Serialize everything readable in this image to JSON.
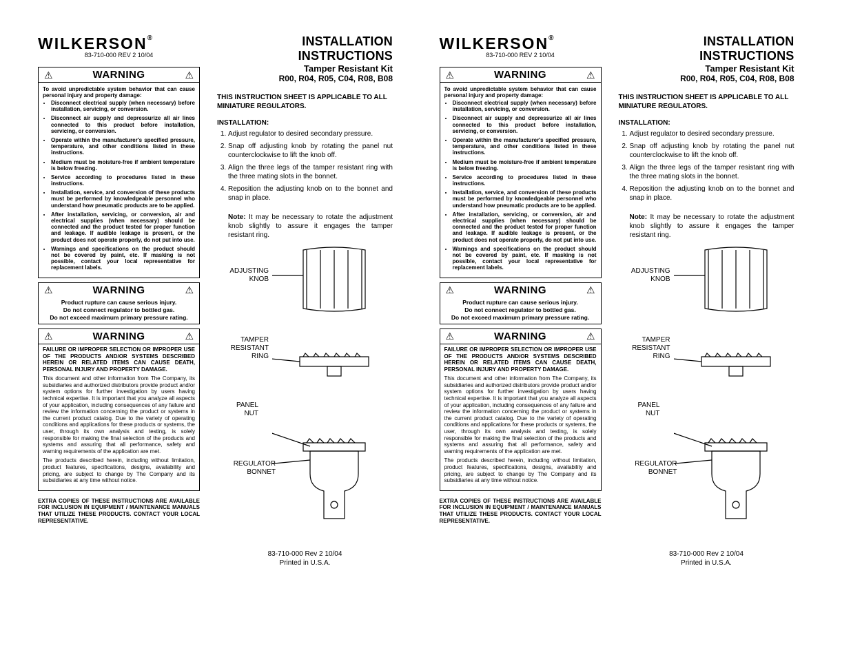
{
  "brand": "WILKERSON",
  "brand_mark": "®",
  "doc_number": "83-710-000  REV 2  10/04",
  "title": {
    "line1": "INSTALLATION INSTRUCTIONS",
    "line2": "Tamper Resistant Kit",
    "line3": "R00, R04, R05, C04, R08, B08"
  },
  "warning_label": "WARNING",
  "warning1": {
    "intro": "To avoid unpredictable system behavior that can cause personal injury and property damage:",
    "bullets": [
      "Disconnect electrical supply (when necessary) before installation, servicing, or conversion.",
      "Disconnect air supply and depressurize all air lines connected to this product before installation, servicing, or conversion.",
      "Operate within the manufacturer's specified pressure, temperature, and other conditions listed in these instructions.",
      "Medium must be moisture-free if ambient temperature is below freezing.",
      "Service according to procedures listed in these instructions.",
      "Installation, service, and conversion of these products must be performed by knowledgeable personnel who understand how pneumatic products are to be applied.",
      "After installation, servicing, or conversion, air and electrical supplies (when necessary) should be connected and the product tested for proper function and leakage. If audible leakage is present, or the product does not operate properly, do not put into use.",
      "Warnings and specifications on the product should not be covered by paint, etc. If masking is not possible, contact your local representative for replacement labels."
    ]
  },
  "warning2": {
    "line1": "Product rupture can cause serious injury.",
    "line2": "Do not connect regulator to bottled gas.",
    "line3": "Do not exceed maximum primary pressure rating."
  },
  "warning3": {
    "bold": "FAILURE OR IMPROPER SELECTION OR IMPROPER USE OF THE PRODUCTS AND/OR SYSTEMS DESCRIBED HEREIN OR RELATED ITEMS CAN CAUSE DEATH, PERSONAL INJURY AND PROPERTY DAMAGE.",
    "para1": "This document and other information from The Company, its subsidiaries and authorized distributors provide product and/or system options for further investigation by users having technical expertise. It is important that you analyze all aspects of your application, including consequences of any failure and review the information concerning the product or systems in the current product catalog. Due to the variety of operating conditions and applications for these products or systems, the user, through its own analysis and testing, is solely responsible for making the final selection of the products and systems and assuring that all performance, safety and warning requirements of the application are met.",
    "para2": "The products described herein, including without limitation, product features, specifications, designs, availability and pricing, are subject to change by The Company and its subsidiaries at any time without notice."
  },
  "extra_copies": "EXTRA COPIES OF THESE INSTRUCTIONS ARE AVAILABLE FOR INCLUSION IN EQUIPMENT / MAINTENANCE MANUALS THAT UTILIZE THESE PRODUCTS. CONTACT YOUR LOCAL REPRESENTATIVE.",
  "applicable": "THIS INSTRUCTION SHEET IS APPLICABLE TO ALL MINIATURE REGULATORS.",
  "install_head": "INSTALLATION:",
  "install_steps": [
    "Adjust regulator to desired secondary pressure.",
    "Snap off adjusting knob by rotating the panel nut counterclockwise to lift the knob off.",
    "Align the three legs of the tamper resistant ring with the three mating slots in the bonnet.",
    "Reposition the adjusting knob on to the bonnet and snap in place."
  ],
  "note_label": "Note:",
  "note_text": "It may be necessary to rotate the adjustment knob slightly to assure it engages the tamper resistant ring.",
  "diagram_labels": {
    "knob": "ADJUSTING\nKNOB",
    "ring": "TAMPER\nRESISTANT\nRING",
    "nut": "PANEL\nNUT",
    "bonnet": "REGULATOR\nBONNET"
  },
  "footer": {
    "line1": "83-710-000  Rev 2  10/04",
    "line2": "Printed in U.S.A."
  },
  "colors": {
    "text": "#000000",
    "background": "#ffffff",
    "border": "#000000"
  }
}
